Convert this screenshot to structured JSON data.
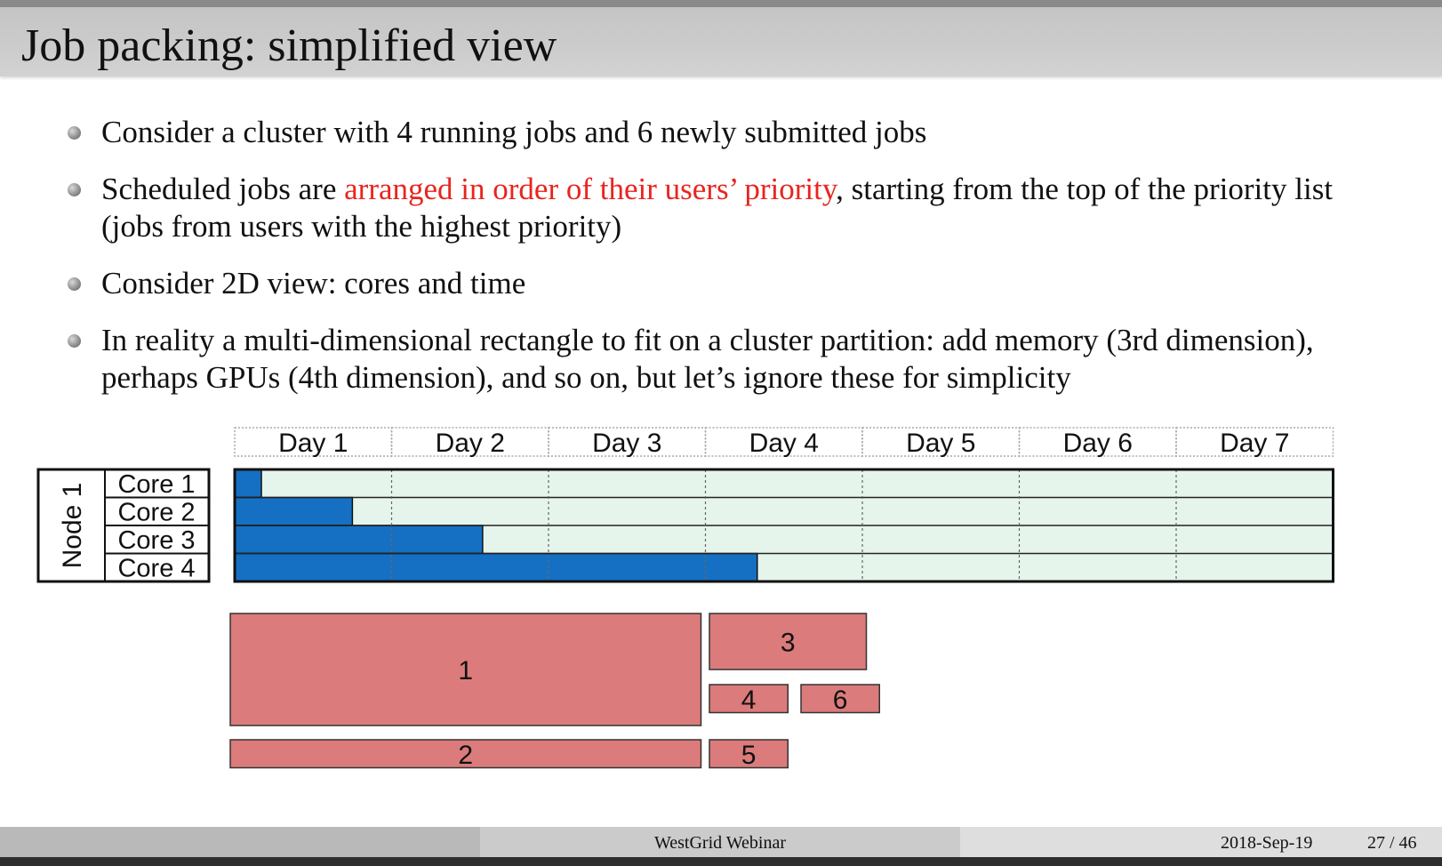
{
  "slide": {
    "title": "Job packing: simplified view",
    "bullets": [
      {
        "pre": "Consider a cluster with 4 running jobs and 6 newly submitted jobs",
        "highlight": "",
        "post": ""
      },
      {
        "pre": "Scheduled jobs are ",
        "highlight": "arranged in order of their users’ priority",
        "post": ", starting from the top of the priority list (jobs from users with the highest priority)"
      },
      {
        "pre": "Consider 2D view: cores and time",
        "highlight": "",
        "post": ""
      },
      {
        "pre": "In reality a multi-dimensional rectangle to fit on a cluster partition: add memory (3rd dimension), perhaps GPUs (4th dimension), and so on, but let’s ignore these for simplicity",
        "highlight": "",
        "post": ""
      }
    ]
  },
  "diagram": {
    "days": [
      "Day 1",
      "Day 2",
      "Day 3",
      "Day 4",
      "Day 5",
      "Day 6",
      "Day 7"
    ],
    "node_label": "Node 1",
    "cores": [
      "Core 1",
      "Core 2",
      "Core 3",
      "Core 4"
    ],
    "running_jobs_end_day": [
      0.17,
      0.75,
      1.58,
      3.33
    ],
    "queued_jobs": [
      {
        "label": "1",
        "cores": 4,
        "days": 3.0
      },
      {
        "label": "2",
        "cores": 1,
        "days": 3.0
      },
      {
        "label": "3",
        "cores": 2,
        "days": 1.0
      },
      {
        "label": "4",
        "cores": 1,
        "days": 0.5
      },
      {
        "label": "5",
        "cores": 1,
        "days": 0.5
      },
      {
        "label": "6",
        "cores": 1,
        "days": 0.5
      }
    ],
    "colors": {
      "running": "#1570c4",
      "free": "#e6f5ec",
      "queued": "#db7b7b"
    }
  },
  "footer": {
    "center": "WestGrid Webinar",
    "date": "2018-Sep-19",
    "page": "27 / 46"
  }
}
